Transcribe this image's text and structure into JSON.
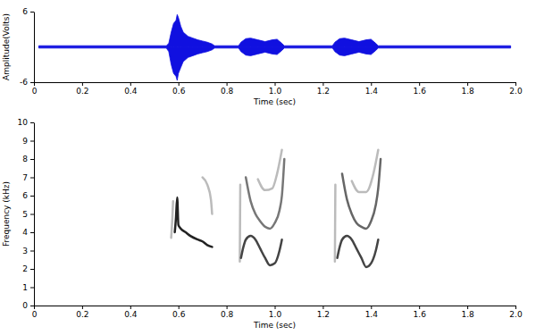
{
  "chart_data": [
    {
      "type": "area",
      "xlabel": "Time (sec)",
      "ylabel": "Amplitude(Volts)",
      "xlim": [
        0,
        2
      ],
      "xticks": [
        0,
        0.2,
        0.4,
        0.6,
        0.8,
        {
          "value": 1,
          "label": "1.0"
        },
        1.2,
        1.4,
        1.6,
        1.8,
        {
          "value": 2,
          "label": "2.0"
        }
      ],
      "ylim": [
        -6,
        6
      ],
      "yticks": [
        -6,
        6
      ],
      "x": [
        0.02,
        0.55,
        0.56,
        0.57,
        0.58,
        0.59,
        0.595,
        0.6,
        0.61,
        0.62,
        0.64,
        0.66,
        0.68,
        0.7,
        0.72,
        0.74,
        0.75,
        0.85,
        0.86,
        0.88,
        0.9,
        0.93,
        0.96,
        0.99,
        1.01,
        1.03,
        1.04,
        1.24,
        1.25,
        1.27,
        1.29,
        1.32,
        1.35,
        1.38,
        1.4,
        1.42,
        1.43,
        1.98
      ],
      "series": [
        {
          "color": "#1010e0",
          "values": [
            0.2,
            0.2,
            0.6,
            2.5,
            4,
            4.5,
            5.5,
            5,
            3.5,
            2.5,
            1.8,
            1.5,
            1.2,
            1,
            0.8,
            0.5,
            0.2,
            0.2,
            0.8,
            1.4,
            1.5,
            1.2,
            0.9,
            1.2,
            1.3,
            0.6,
            0.2,
            0.2,
            0.8,
            1.4,
            1.5,
            1.2,
            0.9,
            1.2,
            1.3,
            0.6,
            0.2,
            0.2
          ]
        },
        {
          "color": "#1010e0",
          "values": [
            -0.2,
            -0.2,
            -0.8,
            -3,
            -4.5,
            -5,
            -5.7,
            -4.5,
            -3.5,
            -2.5,
            -1.8,
            -1.5,
            -1.2,
            -1,
            -0.8,
            -0.5,
            -0.2,
            -0.2,
            -0.8,
            -1.4,
            -1.5,
            -1.2,
            -0.9,
            -1.2,
            -1.3,
            -0.6,
            -0.2,
            -0.2,
            -0.8,
            -1.4,
            -1.5,
            -1.2,
            -0.9,
            -1.2,
            -1.3,
            -0.6,
            -0.2,
            -0.2
          ]
        }
      ]
    },
    {
      "type": "line",
      "xlabel": "Time (sec)",
      "ylabel": "Frequency (kHz)",
      "xlim": [
        0,
        2
      ],
      "xticks": [
        0,
        0.2,
        0.4,
        0.6,
        0.8,
        {
          "value": 1,
          "label": "1.0"
        },
        1.2,
        1.4,
        1.6,
        1.8,
        {
          "value": 2,
          "label": "2.0"
        }
      ],
      "ylim": [
        0,
        10
      ],
      "yticks": [
        0,
        1,
        2,
        3,
        4,
        5,
        6,
        7,
        8,
        9,
        10
      ],
      "series": [
        {
          "color": "#222222",
          "x": [
            0.585,
            0.59,
            0.595,
            0.6,
            0.61,
            0.63,
            0.65,
            0.68,
            0.7,
            0.72,
            0.74
          ],
          "values": [
            4.0,
            4.8,
            5.9,
            4.4,
            4.2,
            4.0,
            3.8,
            3.6,
            3.5,
            3.3,
            3.2
          ]
        },
        {
          "color": "#bbbbbb",
          "x": [
            0.57,
            0.575,
            0.578
          ],
          "values": [
            3.7,
            4.8,
            5.7
          ]
        },
        {
          "color": "#bbbbbb",
          "x": [
            0.7,
            0.72,
            0.735,
            0.74
          ],
          "values": [
            7.0,
            6.6,
            5.8,
            5.0
          ]
        },
        {
          "color": "#bbbbbb",
          "x": [
            0.855,
            0.857
          ],
          "values": [
            2.4,
            6.6
          ]
        },
        {
          "color": "#444444",
          "x": [
            0.86,
            0.87,
            0.88,
            0.9,
            0.92,
            0.94,
            0.96,
            0.98,
            1.0,
            1.02,
            1.03
          ],
          "values": [
            2.6,
            3.2,
            3.6,
            3.8,
            3.6,
            3.1,
            2.6,
            2.2,
            2.3,
            3.0,
            3.6
          ]
        },
        {
          "color": "#777777",
          "x": [
            0.88,
            0.9,
            0.92,
            0.94,
            0.96,
            0.98,
            1.0,
            1.02,
            1.03,
            1.04
          ],
          "values": [
            7.0,
            5.7,
            5.0,
            4.6,
            4.3,
            4.2,
            4.5,
            5.2,
            6.0,
            8.0
          ]
        },
        {
          "color": "#bbbbbb",
          "x": [
            0.93,
            0.96,
            0.99,
            1.01,
            1.03
          ],
          "values": [
            6.9,
            6.3,
            6.4,
            7.2,
            8.5
          ]
        },
        {
          "color": "#bbbbbb",
          "x": [
            1.25,
            1.252
          ],
          "values": [
            2.4,
            6.6
          ]
        },
        {
          "color": "#444444",
          "x": [
            1.26,
            1.27,
            1.28,
            1.3,
            1.32,
            1.34,
            1.36,
            1.38,
            1.4,
            1.42,
            1.43
          ],
          "values": [
            2.6,
            3.2,
            3.6,
            3.8,
            3.6,
            3.1,
            2.6,
            2.1,
            2.3,
            3.0,
            3.6
          ]
        },
        {
          "color": "#666666",
          "x": [
            1.28,
            1.3,
            1.32,
            1.34,
            1.36,
            1.38,
            1.4,
            1.42,
            1.43,
            1.44
          ],
          "values": [
            7.2,
            5.8,
            5.0,
            4.5,
            4.3,
            4.2,
            4.6,
            5.5,
            6.4,
            8.0
          ]
        },
        {
          "color": "#bbbbbb",
          "x": [
            1.32,
            1.35,
            1.38,
            1.41,
            1.43
          ],
          "values": [
            6.8,
            6.2,
            6.2,
            7.2,
            8.5
          ]
        }
      ]
    }
  ]
}
